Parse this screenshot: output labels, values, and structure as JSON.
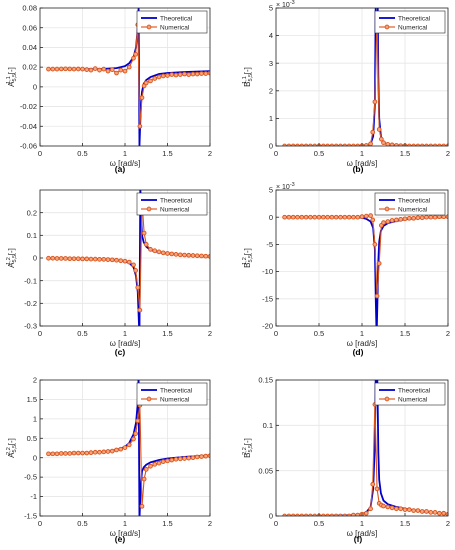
{
  "legend": {
    "theoretical": "Theoretical",
    "numerical": "Numerical"
  },
  "colors": {
    "theoretical": "#0000cc",
    "numerical": "#d95319",
    "marker_face": "#f6a57f",
    "grid": "#e6e6e6",
    "axis": "#262626"
  },
  "chart_data": [
    {
      "id": "a",
      "caption": "(a)",
      "type": "line",
      "ylabel_main": "A",
      "ylabel_sub": "5,5",
      "ylabel_sup": "1,1",
      "ylabel_unit": "[-]",
      "xlabel": "ω [rad/s]",
      "xlim": [
        0,
        2
      ],
      "ylim": [
        -0.06,
        0.08
      ],
      "xticks": [
        0,
        0.5,
        1,
        1.5,
        2
      ],
      "xtick_labels": [
        "0",
        "0.5",
        "1",
        "1.5",
        "2"
      ],
      "yticks": [
        -0.06,
        -0.04,
        -0.02,
        0,
        0.02,
        0.04,
        0.06,
        0.08
      ],
      "ytick_labels": [
        "-0.06",
        "-0.04",
        "-0.02",
        "0",
        "0.02",
        "0.04",
        "0.06",
        "0.08"
      ],
      "exponent_label": "",
      "legend_position": "top-right",
      "series": [
        {
          "name": "Theoretical",
          "x": [
            0.1,
            0.3,
            0.5,
            0.7,
            0.9,
            1.0,
            1.05,
            1.1,
            1.13,
            1.15,
            1.16,
            1.17,
            1.18,
            1.19,
            1.2,
            1.22,
            1.25,
            1.3,
            1.4,
            1.5,
            1.7,
            2.0
          ],
          "y": [
            0.018,
            0.018,
            0.018,
            0.018,
            0.019,
            0.021,
            0.024,
            0.03,
            0.04,
            0.06,
            0.08,
            -0.06,
            -0.035,
            -0.015,
            -0.005,
            0.003,
            0.007,
            0.01,
            0.013,
            0.014,
            0.015,
            0.016
          ]
        },
        {
          "name": "Numerical",
          "x": [
            0.1,
            0.15,
            0.2,
            0.25,
            0.3,
            0.35,
            0.4,
            0.45,
            0.5,
            0.55,
            0.6,
            0.65,
            0.7,
            0.75,
            0.8,
            0.85,
            0.9,
            0.95,
            1.0,
            1.05,
            1.1,
            1.125,
            1.15,
            1.175,
            1.2,
            1.225,
            1.25,
            1.3,
            1.35,
            1.4,
            1.45,
            1.5,
            1.55,
            1.6,
            1.65,
            1.7,
            1.75,
            1.8,
            1.85,
            1.9,
            1.95,
            2.0
          ],
          "y": [
            0.018,
            0.018,
            0.018,
            0.0182,
            0.0183,
            0.0182,
            0.018,
            0.0181,
            0.018,
            0.0175,
            0.017,
            0.0185,
            0.017,
            0.018,
            0.016,
            0.0175,
            0.014,
            0.017,
            0.016,
            0.02,
            0.029,
            0.033,
            0.063,
            -0.04,
            -0.011,
            0.001,
            0.004,
            0.006,
            0.0085,
            0.01,
            0.011,
            0.0115,
            0.0125,
            0.012,
            0.0125,
            0.013,
            0.0125,
            0.013,
            0.013,
            0.0135,
            0.0135,
            0.014
          ]
        }
      ]
    },
    {
      "id": "b",
      "caption": "(b)",
      "type": "line",
      "ylabel_main": "B",
      "ylabel_sub": "5,5",
      "ylabel_sup": "1,1",
      "ylabel_unit": "[-]",
      "xlabel": "ω [rad/s]",
      "xlim": [
        0,
        2
      ],
      "ylim": [
        0,
        5
      ],
      "xticks": [
        0,
        0.5,
        1,
        1.5,
        2
      ],
      "xtick_labels": [
        "0",
        "0.5",
        "1",
        "1.5",
        "2"
      ],
      "yticks": [
        0,
        1,
        2,
        3,
        4,
        5
      ],
      "ytick_labels": [
        "0",
        "1",
        "2",
        "3",
        "4",
        "5"
      ],
      "exponent_label": "× 10",
      "exponent_sup": "-3",
      "legend_position": "top-right",
      "series": [
        {
          "name": "Theoretical",
          "x": [
            0.1,
            0.5,
            0.9,
            1.05,
            1.1,
            1.13,
            1.15,
            1.16,
            1.17,
            1.18,
            1.19,
            1.2,
            1.22,
            1.25,
            1.3,
            1.5,
            2.0
          ],
          "y": [
            0,
            0,
            0,
            0.02,
            0.08,
            0.35,
            1.5,
            5.5,
            8,
            6,
            2.5,
            1,
            0.35,
            0.12,
            0.05,
            0.01,
            0
          ]
        },
        {
          "name": "Numerical",
          "x": [
            0.1,
            0.15,
            0.2,
            0.25,
            0.3,
            0.35,
            0.4,
            0.45,
            0.5,
            0.55,
            0.6,
            0.65,
            0.7,
            0.75,
            0.8,
            0.85,
            0.9,
            0.95,
            1.0,
            1.05,
            1.1,
            1.125,
            1.15,
            1.175,
            1.2,
            1.225,
            1.25,
            1.3,
            1.35,
            1.4,
            1.45,
            1.5,
            1.55,
            1.6,
            1.65,
            1.7,
            1.75,
            1.8,
            1.85,
            1.9,
            1.95,
            2.0
          ],
          "y": [
            0,
            0,
            0,
            0,
            0,
            0,
            0,
            0,
            0,
            0,
            0,
            0,
            0,
            0,
            0,
            0,
            0,
            0,
            0.01,
            0.02,
            0.08,
            0.5,
            1.6,
            4.7,
            0.6,
            0.25,
            0.12,
            0.06,
            0.04,
            0.02,
            0.01,
            0.01,
            0,
            0,
            0,
            0,
            0,
            0,
            0,
            0,
            0,
            0
          ]
        }
      ]
    },
    {
      "id": "c",
      "caption": "(c)",
      "type": "line",
      "ylabel_main": "A",
      "ylabel_sub": "5,5",
      "ylabel_sup": "1,2",
      "ylabel_unit": "[-]",
      "xlabel": "ω [rad/s]",
      "xlim": [
        0,
        2
      ],
      "ylim": [
        -0.3,
        0.3
      ],
      "xticks": [
        0,
        0.5,
        1,
        1.5,
        2
      ],
      "xtick_labels": [
        "0",
        "0.5",
        "1",
        "1.5",
        "2"
      ],
      "yticks": [
        -0.3,
        -0.2,
        -0.1,
        0,
        0.1,
        0.2
      ],
      "ytick_labels": [
        "-0.3",
        "-0.2",
        "-0.1",
        "0",
        "0.1",
        "0.2"
      ],
      "exponent_label": "",
      "legend_position": "top-right",
      "series": [
        {
          "name": "Theoretical",
          "x": [
            0.1,
            0.3,
            0.5,
            0.7,
            0.9,
            1.0,
            1.05,
            1.1,
            1.13,
            1.15,
            1.17,
            1.18,
            1.19,
            1.2,
            1.22,
            1.25,
            1.3,
            1.4,
            1.5,
            1.7,
            2.0
          ],
          "y": [
            -0.001,
            -0.002,
            -0.003,
            -0.005,
            -0.01,
            -0.015,
            -0.022,
            -0.04,
            -0.08,
            -0.15,
            -0.35,
            0.32,
            0.18,
            0.1,
            0.07,
            0.05,
            0.035,
            0.025,
            0.02,
            0.012,
            0.005
          ]
        },
        {
          "name": "Numerical",
          "x": [
            0.1,
            0.15,
            0.2,
            0.25,
            0.3,
            0.35,
            0.4,
            0.45,
            0.5,
            0.55,
            0.6,
            0.65,
            0.7,
            0.75,
            0.8,
            0.85,
            0.9,
            0.95,
            1.0,
            1.05,
            1.1,
            1.125,
            1.15,
            1.175,
            1.2,
            1.225,
            1.25,
            1.3,
            1.35,
            1.4,
            1.45,
            1.5,
            1.55,
            1.6,
            1.65,
            1.7,
            1.75,
            1.8,
            1.85,
            1.9,
            1.95,
            2.0
          ],
          "y": [
            -0.001,
            -0.001,
            -0.002,
            -0.002,
            -0.002,
            -0.003,
            -0.003,
            -0.003,
            -0.004,
            -0.004,
            -0.005,
            -0.005,
            -0.006,
            -0.006,
            -0.007,
            -0.008,
            -0.01,
            -0.012,
            -0.014,
            -0.018,
            -0.03,
            -0.055,
            -0.13,
            -0.23,
            0.25,
            0.11,
            0.06,
            0.038,
            0.032,
            0.027,
            0.023,
            0.02,
            0.018,
            0.016,
            0.014,
            0.013,
            0.012,
            0.011,
            0.01,
            0.009,
            0.008,
            0.007
          ]
        }
      ]
    },
    {
      "id": "d",
      "caption": "(d)",
      "type": "line",
      "ylabel_main": "B",
      "ylabel_sub": "5,5",
      "ylabel_sup": "1,2",
      "ylabel_unit": "[-]",
      "xlabel": "ω [rad/s]",
      "xlim": [
        0,
        2
      ],
      "ylim": [
        -20,
        5
      ],
      "xticks": [
        0,
        0.5,
        1,
        1.5,
        2
      ],
      "xtick_labels": [
        "0",
        "0.5",
        "1",
        "1.5",
        "2"
      ],
      "yticks": [
        -20,
        -15,
        -10,
        -5,
        0,
        5
      ],
      "ytick_labels": [
        "-20",
        "-15",
        "-10",
        "-5",
        "0",
        "5"
      ],
      "exponent_label": "× 10",
      "exponent_sup": "-3",
      "legend_position": "top-right",
      "series": [
        {
          "name": "Theoretical",
          "x": [
            0.1,
            0.5,
            0.9,
            1.0,
            1.05,
            1.1,
            1.13,
            1.15,
            1.16,
            1.17,
            1.18,
            1.19,
            1.2,
            1.22,
            1.25,
            1.3,
            1.4,
            1.5,
            1.7,
            2.0
          ],
          "y": [
            0,
            0,
            0,
            -0.1,
            -0.3,
            -0.8,
            -2,
            -6,
            -15,
            -22,
            -15,
            -8,
            -4.5,
            -2.5,
            -1.6,
            -1.1,
            -0.7,
            -0.4,
            -0.1,
            0
          ]
        },
        {
          "name": "Numerical",
          "x": [
            0.1,
            0.15,
            0.2,
            0.25,
            0.3,
            0.35,
            0.4,
            0.45,
            0.5,
            0.55,
            0.6,
            0.65,
            0.7,
            0.75,
            0.8,
            0.85,
            0.9,
            0.95,
            1.0,
            1.05,
            1.1,
            1.125,
            1.15,
            1.175,
            1.2,
            1.225,
            1.25,
            1.3,
            1.35,
            1.4,
            1.45,
            1.5,
            1.55,
            1.6,
            1.65,
            1.7,
            1.75,
            1.8,
            1.85,
            1.9,
            1.95,
            2.0
          ],
          "y": [
            0,
            0,
            0,
            0,
            0,
            0,
            0,
            0,
            0,
            0,
            0,
            0,
            0,
            0,
            0,
            0,
            0,
            0,
            0.1,
            0.2,
            0.3,
            -0.5,
            -5,
            -14.5,
            -8.5,
            -1.5,
            -1,
            -0.8,
            -0.6,
            -0.5,
            -0.4,
            -0.3,
            -0.2,
            -0.2,
            -0.1,
            -0.1,
            0,
            0,
            0,
            0.1,
            0.1,
            0.1
          ]
        }
      ]
    },
    {
      "id": "e",
      "caption": "(e)",
      "type": "line",
      "ylabel_main": "A",
      "ylabel_sub": "5,5",
      "ylabel_sup": "2,2",
      "ylabel_unit": "[-]",
      "xlabel": "ω [rad/s]",
      "xlim": [
        0,
        2
      ],
      "ylim": [
        -1.5,
        2
      ],
      "xticks": [
        0,
        0.5,
        1,
        1.5,
        2
      ],
      "xtick_labels": [
        "0",
        "0.5",
        "1",
        "1.5",
        "2"
      ],
      "yticks": [
        -1.5,
        -1,
        -0.5,
        0,
        0.5,
        1,
        1.5,
        2
      ],
      "ytick_labels": [
        "-1.5",
        "-1",
        "-0.5",
        "0",
        "0.5",
        "1",
        "1.5",
        "2"
      ],
      "exponent_label": "",
      "legend_position": "top-right",
      "series": [
        {
          "name": "Theoretical",
          "x": [
            0.1,
            0.3,
            0.5,
            0.7,
            0.9,
            1.0,
            1.05,
            1.1,
            1.13,
            1.15,
            1.16,
            1.17,
            1.18,
            1.19,
            1.2,
            1.22,
            1.25,
            1.3,
            1.4,
            1.5,
            1.7,
            2.0
          ],
          "y": [
            0.1,
            0.11,
            0.12,
            0.14,
            0.2,
            0.28,
            0.38,
            0.6,
            0.9,
            1.4,
            2.1,
            -1.6,
            -1.0,
            -0.6,
            -0.35,
            -0.25,
            -0.18,
            -0.12,
            -0.06,
            -0.02,
            0.02,
            0.06
          ]
        },
        {
          "name": "Numerical",
          "x": [
            0.1,
            0.15,
            0.2,
            0.25,
            0.3,
            0.35,
            0.4,
            0.45,
            0.5,
            0.55,
            0.6,
            0.65,
            0.7,
            0.75,
            0.8,
            0.85,
            0.9,
            0.95,
            1.0,
            1.05,
            1.1,
            1.125,
            1.15,
            1.175,
            1.2,
            1.225,
            1.25,
            1.3,
            1.35,
            1.4,
            1.45,
            1.5,
            1.55,
            1.6,
            1.65,
            1.7,
            1.75,
            1.8,
            1.85,
            1.9,
            1.95,
            2.0
          ],
          "y": [
            0.1,
            0.1,
            0.1,
            0.11,
            0.11,
            0.11,
            0.12,
            0.12,
            0.12,
            0.12,
            0.13,
            0.14,
            0.14,
            0.15,
            0.16,
            0.17,
            0.2,
            0.22,
            0.26,
            0.33,
            0.48,
            0.62,
            0.95,
            1.35,
            -1.25,
            -0.55,
            -0.3,
            -0.22,
            -0.17,
            -0.14,
            -0.1,
            -0.08,
            -0.06,
            -0.04,
            -0.03,
            -0.02,
            -0.01,
            0,
            0.02,
            0.03,
            0.04,
            0.05
          ]
        }
      ]
    },
    {
      "id": "f",
      "caption": "(f)",
      "type": "line",
      "ylabel_main": "B",
      "ylabel_sub": "5,5",
      "ylabel_sup": "2,2",
      "ylabel_unit": "[-]",
      "xlabel": "ω [rad/s]",
      "xlim": [
        0,
        2
      ],
      "ylim": [
        0,
        0.15
      ],
      "xticks": [
        0,
        0.5,
        1,
        1.5,
        2
      ],
      "xtick_labels": [
        "0",
        "0.5",
        "1",
        "1.5",
        "2"
      ],
      "yticks": [
        0,
        0.05,
        0.1,
        0.15
      ],
      "ytick_labels": [
        "0",
        "0.05",
        "0.1",
        "0.15"
      ],
      "exponent_label": "",
      "legend_position": "top-right",
      "series": [
        {
          "name": "Theoretical",
          "x": [
            0.1,
            0.5,
            0.9,
            1.0,
            1.05,
            1.1,
            1.13,
            1.15,
            1.16,
            1.17,
            1.18,
            1.19,
            1.2,
            1.22,
            1.25,
            1.3,
            1.4,
            1.5,
            1.7,
            2.0
          ],
          "y": [
            0,
            0,
            0.001,
            0.002,
            0.004,
            0.01,
            0.03,
            0.08,
            0.16,
            0.2,
            0.14,
            0.07,
            0.04,
            0.025,
            0.017,
            0.013,
            0.01,
            0.008,
            0.005,
            0.002
          ]
        },
        {
          "name": "Numerical",
          "x": [
            0.1,
            0.15,
            0.2,
            0.25,
            0.3,
            0.35,
            0.4,
            0.45,
            0.5,
            0.55,
            0.6,
            0.65,
            0.7,
            0.75,
            0.8,
            0.85,
            0.9,
            0.95,
            1.0,
            1.05,
            1.1,
            1.125,
            1.15,
            1.175,
            1.2,
            1.225,
            1.25,
            1.3,
            1.35,
            1.4,
            1.45,
            1.5,
            1.55,
            1.6,
            1.65,
            1.7,
            1.75,
            1.8,
            1.85,
            1.9,
            1.95,
            2.0
          ],
          "y": [
            0,
            0,
            0,
            0,
            0,
            0,
            0,
            0,
            0,
            0,
            0,
            0,
            0,
            0,
            0,
            0,
            0.001,
            0.001,
            0.002,
            0.003,
            0.008,
            0.035,
            0.123,
            0.03,
            0.014,
            0.012,
            0.011,
            0.01,
            0.009,
            0.008,
            0.008,
            0.007,
            0.007,
            0.006,
            0.006,
            0.005,
            0.005,
            0.004,
            0.004,
            0.003,
            0.003,
            0.002
          ]
        }
      ]
    }
  ]
}
